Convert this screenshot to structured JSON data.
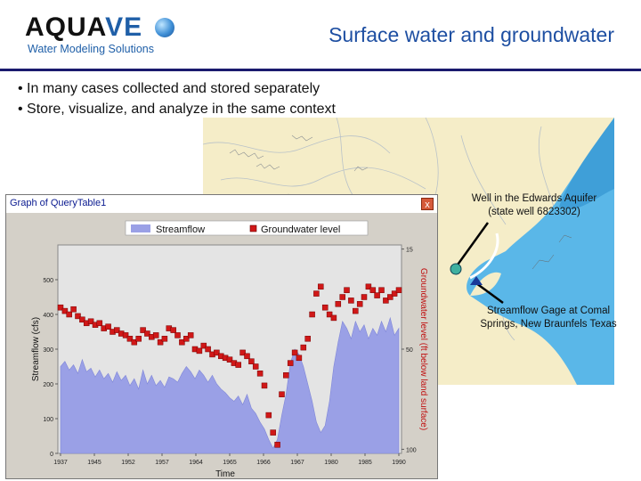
{
  "logo": {
    "word_main": "AQUA",
    "word_accent": "VE",
    "tagline": "Water Modeling Solutions"
  },
  "slide": {
    "title": "Surface water and groundwater"
  },
  "bullets": [
    "• In many cases collected and stored separately",
    "• Store, visualize, and analyze in the same context"
  ],
  "window": {
    "title": "Graph of QueryTable1",
    "close_label": "x"
  },
  "annotations": {
    "well_line1": "Well in the Edwards Aquifer",
    "well_line2": "(state well 6823302)",
    "gage_line1": "Streamflow Gage at Comal",
    "gage_line2": "Springs, New Braunfels Texas"
  },
  "colors": {
    "accent": "#1e4fa2",
    "streamflow": "#9aa0e6",
    "groundwater": "#d01818",
    "plot_bg": "#e4e4e4",
    "map_water": "#5ab7e8",
    "map_land": "#f5edc8"
  },
  "chart_data": {
    "type": "area",
    "xlabel": "Time",
    "ylabel": "Streamflow (cfs)",
    "y2label": "Groundwater level (ft below land surface)",
    "legend": [
      "Streamflow",
      "Groundwater level"
    ],
    "legend_position": "top",
    "grid": false,
    "x_ticks": [
      "1937",
      "1945",
      "1952",
      "1957",
      "1964",
      "1965",
      "1966",
      "1967",
      "1980",
      "1985",
      "1990"
    ],
    "y_ticks": [
      "0",
      "100",
      "200",
      "300",
      "400",
      "500"
    ],
    "y2_ticks": [
      "15",
      "50",
      "100"
    ],
    "ylim": [
      0,
      600
    ],
    "series": [
      {
        "name": "Streamflow",
        "type": "area",
        "values": [
          250,
          265,
          240,
          255,
          230,
          270,
          235,
          245,
          220,
          240,
          215,
          230,
          205,
          235,
          210,
          225,
          195,
          215,
          185,
          240,
          200,
          225,
          195,
          210,
          190,
          220,
          215,
          205,
          230,
          250,
          235,
          215,
          240,
          225,
          205,
          225,
          200,
          185,
          175,
          160,
          150,
          165,
          140,
          170,
          130,
          115,
          90,
          70,
          40,
          15,
          40,
          110,
          170,
          260,
          300,
          285,
          250,
          200,
          150,
          90,
          60,
          80,
          150,
          250,
          320,
          380,
          360,
          330,
          380,
          350,
          370,
          330,
          360,
          340,
          380,
          350,
          390,
          340,
          360
        ]
      },
      {
        "name": "Groundwater level",
        "type": "scatter",
        "values": [
          420,
          410,
          400,
          415,
          395,
          385,
          375,
          380,
          370,
          375,
          360,
          365,
          350,
          355,
          345,
          340,
          330,
          320,
          330,
          355,
          345,
          335,
          340,
          320,
          330,
          360,
          355,
          340,
          320,
          330,
          340,
          300,
          295,
          310,
          300,
          285,
          290,
          280,
          275,
          270,
          260,
          255,
          290,
          280,
          265,
          250,
          230,
          195,
          110,
          60,
          25,
          170,
          225,
          260,
          290,
          275,
          305,
          330,
          400,
          460,
          480,
          420,
          400,
          390,
          430,
          450,
          470,
          440,
          410,
          430,
          450,
          480,
          470,
          455,
          470,
          440,
          450,
          460,
          470
        ]
      }
    ]
  }
}
